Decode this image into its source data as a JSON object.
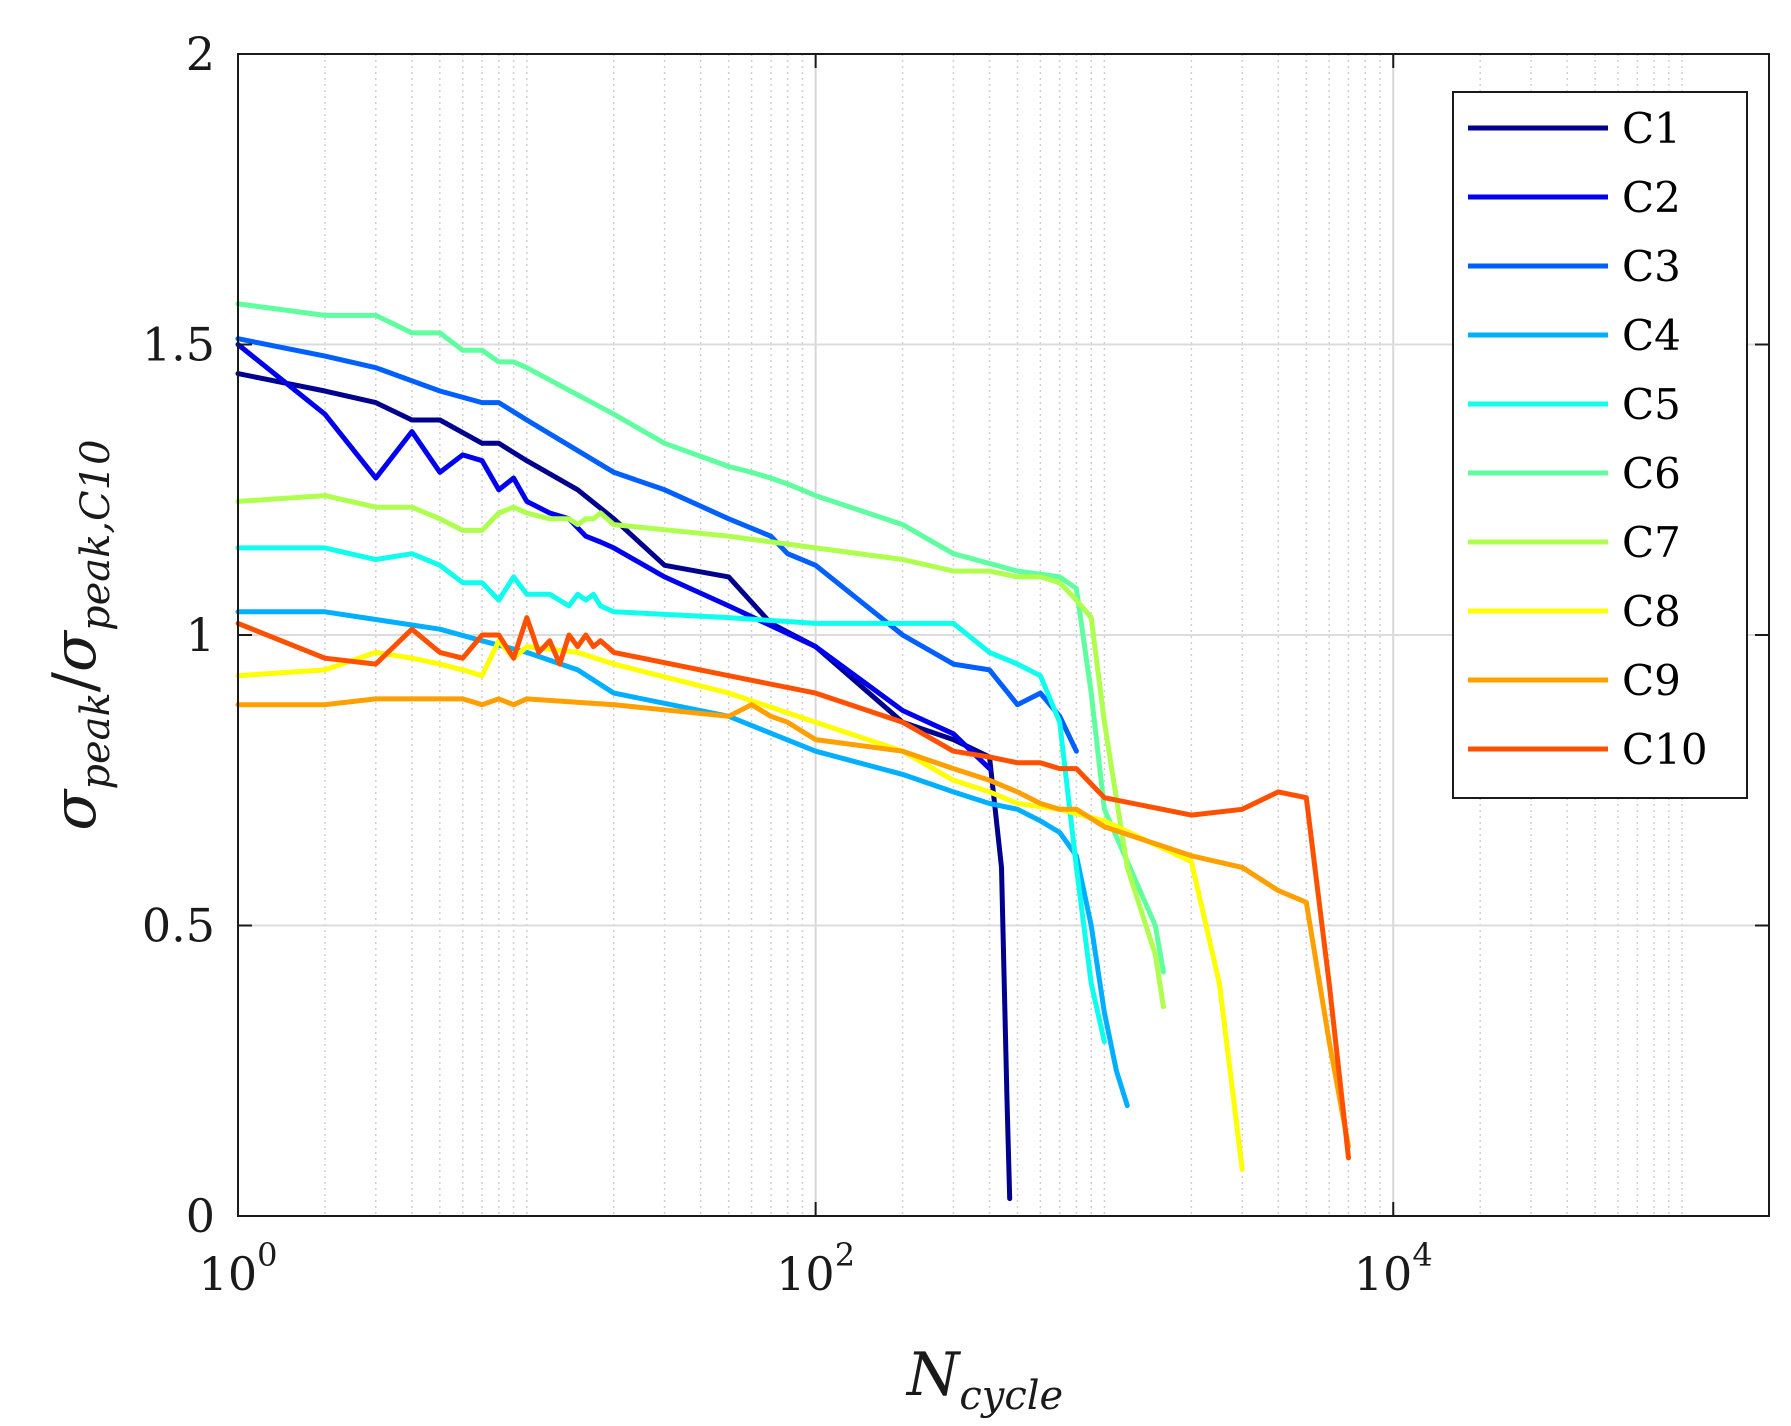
{
  "chart_data": {
    "type": "line",
    "title": "",
    "xscale": "log",
    "xlim": [
      1,
      200000
    ],
    "ylim": [
      0,
      2
    ],
    "grid": true,
    "legend_position": "top-right",
    "xlabel": {
      "main": "N",
      "sub": "cycle"
    },
    "ylabel": {
      "num_main": "σ",
      "num_sub": "peak",
      "sep": "/",
      "den_main": "σ",
      "den_sub": "peak,C10"
    },
    "xticks": [
      {
        "value": 1,
        "base": "10",
        "exp": "0"
      },
      {
        "value": 100,
        "base": "10",
        "exp": "2"
      },
      {
        "value": 10000,
        "base": "10",
        "exp": "4"
      }
    ],
    "yticks": [
      {
        "value": 0,
        "label": "0"
      },
      {
        "value": 0.5,
        "label": "0.5"
      },
      {
        "value": 1,
        "label": "1"
      },
      {
        "value": 1.5,
        "label": "1.5"
      },
      {
        "value": 2,
        "label": "2"
      }
    ],
    "series": [
      {
        "name": "C1",
        "color": "#00008f",
        "x": [
          1,
          2,
          3,
          4,
          5,
          7,
          8,
          10,
          15,
          20,
          30,
          50,
          70,
          100,
          200,
          300,
          400,
          440,
          460,
          470
        ],
        "y": [
          1.45,
          1.42,
          1.4,
          1.37,
          1.37,
          1.33,
          1.33,
          1.3,
          1.25,
          1.2,
          1.12,
          1.1,
          1.02,
          0.98,
          0.85,
          0.82,
          0.79,
          0.6,
          0.2,
          0.03
        ]
      },
      {
        "name": "C2",
        "color": "#0000ef",
        "x": [
          1,
          2,
          3,
          4,
          5,
          6,
          7,
          8,
          9,
          10,
          12,
          14,
          16,
          18,
          20,
          30,
          50,
          100,
          200,
          300,
          400
        ],
        "y": [
          1.5,
          1.38,
          1.27,
          1.35,
          1.28,
          1.31,
          1.3,
          1.25,
          1.27,
          1.23,
          1.21,
          1.2,
          1.17,
          1.16,
          1.15,
          1.1,
          1.05,
          0.98,
          0.87,
          0.83,
          0.77
        ]
      },
      {
        "name": "C3",
        "color": "#005fff",
        "x": [
          1,
          2,
          3,
          5,
          7,
          8,
          10,
          20,
          30,
          50,
          70,
          80,
          100,
          200,
          300,
          400,
          500,
          600,
          700,
          800
        ],
        "y": [
          1.51,
          1.48,
          1.46,
          1.42,
          1.4,
          1.4,
          1.37,
          1.28,
          1.25,
          1.2,
          1.17,
          1.14,
          1.12,
          1.0,
          0.95,
          0.94,
          0.88,
          0.9,
          0.86,
          0.8
        ]
      },
      {
        "name": "C4",
        "color": "#00afff",
        "x": [
          1,
          2,
          5,
          7,
          10,
          15,
          20,
          50,
          100,
          200,
          300,
          400,
          500,
          600,
          700,
          800,
          900,
          1000,
          1100,
          1200
        ],
        "y": [
          1.04,
          1.04,
          1.01,
          0.99,
          0.97,
          0.94,
          0.9,
          0.86,
          0.8,
          0.76,
          0.73,
          0.71,
          0.7,
          0.68,
          0.66,
          0.62,
          0.5,
          0.35,
          0.25,
          0.19
        ]
      },
      {
        "name": "C5",
        "color": "#0fffef",
        "x": [
          1,
          2,
          3,
          4,
          5,
          6,
          7,
          8,
          9,
          10,
          12,
          14,
          15,
          16,
          17,
          18,
          20,
          50,
          100,
          300,
          400,
          500,
          600,
          700,
          800,
          900,
          1000
        ],
        "y": [
          1.15,
          1.15,
          1.13,
          1.14,
          1.12,
          1.09,
          1.09,
          1.06,
          1.1,
          1.07,
          1.07,
          1.05,
          1.07,
          1.06,
          1.07,
          1.05,
          1.04,
          1.03,
          1.02,
          1.02,
          0.97,
          0.95,
          0.93,
          0.85,
          0.6,
          0.4,
          0.3
        ]
      },
      {
        "name": "C6",
        "color": "#5fffa0",
        "x": [
          1,
          2,
          3,
          4,
          5,
          6,
          7,
          8,
          9,
          10,
          20,
          30,
          50,
          60,
          70,
          80,
          100,
          200,
          300,
          500,
          700,
          800,
          900,
          1000,
          1500,
          1600
        ],
        "y": [
          1.57,
          1.55,
          1.55,
          1.52,
          1.52,
          1.49,
          1.49,
          1.47,
          1.47,
          1.46,
          1.38,
          1.33,
          1.29,
          1.28,
          1.27,
          1.26,
          1.24,
          1.19,
          1.14,
          1.11,
          1.1,
          1.08,
          0.9,
          0.7,
          0.5,
          0.42
        ]
      },
      {
        "name": "C7",
        "color": "#afff4f",
        "x": [
          1,
          2,
          3,
          4,
          5,
          6,
          7,
          8,
          9,
          10,
          12,
          14,
          15,
          16,
          17,
          18,
          20,
          50,
          100,
          200,
          300,
          400,
          500,
          600,
          700,
          800,
          900,
          1000,
          1200,
          1500,
          1600
        ],
        "y": [
          1.23,
          1.24,
          1.22,
          1.22,
          1.2,
          1.18,
          1.18,
          1.21,
          1.22,
          1.21,
          1.2,
          1.2,
          1.19,
          1.2,
          1.2,
          1.21,
          1.19,
          1.17,
          1.15,
          1.13,
          1.11,
          1.11,
          1.1,
          1.1,
          1.09,
          1.06,
          1.03,
          0.85,
          0.6,
          0.45,
          0.36
        ]
      },
      {
        "name": "C8",
        "color": "#ffff00",
        "x": [
          1,
          2,
          3,
          4,
          5,
          6,
          7,
          8,
          9,
          10,
          15,
          20,
          50,
          100,
          200,
          300,
          400,
          500,
          700,
          1000,
          2000,
          2500,
          3000
        ],
        "y": [
          0.93,
          0.94,
          0.97,
          0.96,
          0.95,
          0.94,
          0.93,
          0.99,
          0.96,
          0.98,
          0.97,
          0.95,
          0.9,
          0.85,
          0.8,
          0.75,
          0.73,
          0.71,
          0.7,
          0.68,
          0.61,
          0.4,
          0.08
        ]
      },
      {
        "name": "C9",
        "color": "#ffa000",
        "x": [
          1,
          2,
          3,
          4,
          5,
          6,
          7,
          8,
          9,
          10,
          20,
          50,
          60,
          70,
          80,
          100,
          200,
          300,
          400,
          500,
          600,
          700,
          800,
          1000,
          2000,
          3000,
          4000,
          5000,
          6000,
          7000
        ],
        "y": [
          0.88,
          0.88,
          0.89,
          0.89,
          0.89,
          0.89,
          0.88,
          0.89,
          0.88,
          0.89,
          0.88,
          0.86,
          0.88,
          0.86,
          0.85,
          0.82,
          0.8,
          0.77,
          0.75,
          0.73,
          0.71,
          0.7,
          0.7,
          0.67,
          0.62,
          0.6,
          0.56,
          0.54,
          0.3,
          0.12
        ]
      },
      {
        "name": "C10",
        "color": "#ff5000",
        "x": [
          1,
          2,
          3,
          4,
          5,
          6,
          7,
          8,
          9,
          10,
          11,
          12,
          13,
          14,
          15,
          16,
          17,
          18,
          19,
          20,
          50,
          100,
          200,
          300,
          400,
          500,
          600,
          700,
          800,
          1000,
          2000,
          3000,
          4000,
          5000,
          6000,
          7000
        ],
        "y": [
          1.02,
          0.96,
          0.95,
          1.01,
          0.97,
          0.96,
          1.0,
          1.0,
          0.96,
          1.03,
          0.97,
          0.99,
          0.95,
          1.0,
          0.98,
          1.0,
          0.98,
          0.99,
          0.98,
          0.97,
          0.93,
          0.9,
          0.85,
          0.8,
          0.79,
          0.78,
          0.78,
          0.77,
          0.77,
          0.72,
          0.69,
          0.7,
          0.73,
          0.72,
          0.4,
          0.1
        ]
      }
    ]
  }
}
